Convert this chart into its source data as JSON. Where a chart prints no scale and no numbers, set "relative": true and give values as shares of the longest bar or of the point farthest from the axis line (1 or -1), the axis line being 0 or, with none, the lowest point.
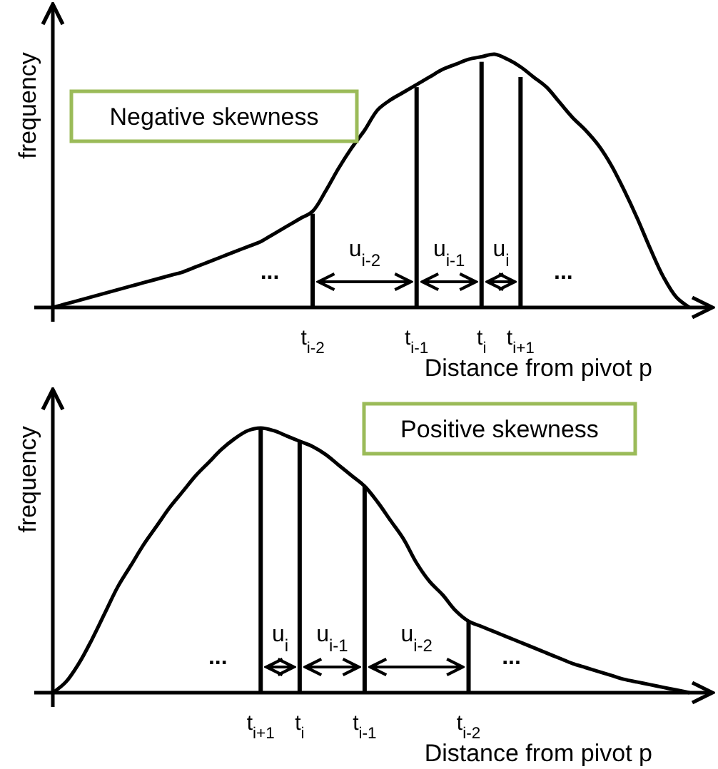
{
  "chart_data": [
    {
      "type": "line",
      "relative": true,
      "xlabel": "Distance from pivot p",
      "ylabel": "frequency",
      "categories": [
        null,
        null,
        null,
        null,
        null,
        null,
        null,
        null,
        null,
        null,
        null,
        null,
        null,
        null,
        null,
        null,
        null,
        null,
        null,
        null,
        "t$_{i-2}$",
        null,
        null,
        null,
        null,
        null,
        null,
        null,
        "t$_{i-1}$",
        null,
        null,
        null,
        null,
        "t$_{i}$",
        null,
        null,
        "t$_{i+1}$",
        null,
        null,
        null,
        null,
        null,
        null,
        null,
        null,
        null,
        null,
        null,
        null,
        null
      ],
      "annotations": [
        "Negative skewness",
        "...",
        "u$_{i-2}$",
        "u$_{i-1}$",
        "u$_{i}$",
        "..."
      ],
      "series": [
        {
          "color": "#000000",
          "values": [
            0,
            0.014,
            0.028,
            0.042,
            0.056,
            0.07,
            0.084,
            0.098,
            0.112,
            0.126,
            0.14,
            0.16,
            0.18,
            0.2,
            0.22,
            0.24,
            0.26,
            0.29,
            0.32,
            0.35,
            0.38,
            0.46,
            0.55,
            0.63,
            0.7,
            0.78,
            0.82,
            0.85,
            0.88,
            0.91,
            0.94,
            0.96,
            0.98,
            0.99,
            1,
            0.98,
            0.95,
            0.91,
            0.87,
            0.81,
            0.75,
            0.7,
            0.64,
            0.56,
            0.46,
            0.35,
            0.23,
            0.12,
            0.04,
            0
          ]
        },
        {
          "type": "bar",
          "color": "#000000",
          "values": [
            null,
            null,
            null,
            null,
            null,
            null,
            null,
            null,
            null,
            null,
            null,
            null,
            null,
            null,
            null,
            null,
            null,
            null,
            null,
            null,
            0.37,
            null,
            null,
            null,
            null,
            null,
            null,
            null,
            0.87,
            null,
            null,
            null,
            null,
            0.97,
            null,
            null,
            0.91,
            null,
            null,
            null,
            null,
            null,
            null,
            null,
            null,
            null,
            null,
            null,
            null,
            null
          ]
        }
      ]
    },
    {
      "type": "line",
      "relative": true,
      "xlabel": "Distance from pivot p",
      "ylabel": "frequency",
      "categories": [
        null,
        null,
        null,
        null,
        null,
        null,
        null,
        null,
        null,
        null,
        null,
        null,
        null,
        null,
        null,
        null,
        "t$_{i+1}$",
        null,
        null,
        "t$_{i}$",
        null,
        null,
        null,
        null,
        "t$_{i-1}$",
        null,
        null,
        null,
        null,
        null,
        null,
        null,
        "t$_{i-2}$",
        null,
        null,
        null,
        null,
        null,
        null,
        null,
        null,
        null,
        null,
        null,
        null,
        null,
        null,
        null,
        null,
        null
      ],
      "annotations": [
        "Positive skewness",
        "...",
        "u$_{i}$",
        "u$_{i-1}$",
        "u$_{i-2}$",
        "..."
      ],
      "series": [
        {
          "color": "#000000",
          "values": [
            0,
            0.04,
            0.11,
            0.2,
            0.3,
            0.4,
            0.48,
            0.56,
            0.63,
            0.7,
            0.76,
            0.82,
            0.87,
            0.92,
            0.96,
            0.99,
            1,
            0.99,
            0.97,
            0.95,
            0.93,
            0.9,
            0.86,
            0.82,
            0.78,
            0.72,
            0.65,
            0.58,
            0.49,
            0.42,
            0.37,
            0.31,
            0.27,
            0.25,
            0.23,
            0.21,
            0.19,
            0.17,
            0.15,
            0.13,
            0.11,
            0.095,
            0.08,
            0.065,
            0.05,
            0.04,
            0.03,
            0.02,
            0.01,
            0
          ]
        },
        {
          "type": "bar",
          "color": "#000000",
          "values": [
            null,
            null,
            null,
            null,
            null,
            null,
            null,
            null,
            null,
            null,
            null,
            null,
            null,
            null,
            null,
            null,
            1,
            null,
            null,
            0.95,
            null,
            null,
            null,
            null,
            0.78,
            null,
            null,
            null,
            null,
            null,
            null,
            null,
            0.27,
            null,
            null,
            null,
            null,
            null,
            null,
            null,
            null,
            null,
            null,
            null,
            null,
            null,
            null,
            null,
            null,
            null
          ]
        }
      ]
    }
  ]
}
